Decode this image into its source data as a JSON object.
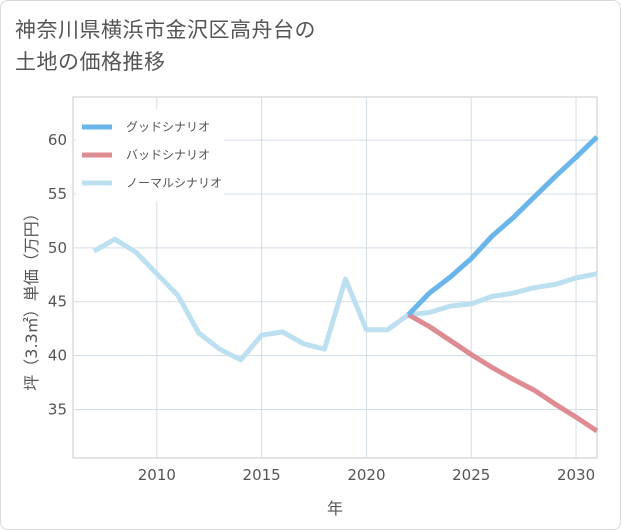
{
  "title_line1": "神奈川県横浜市金沢区高舟台の",
  "title_line2": "土地の価格推移",
  "chart_data": {
    "type": "line",
    "title": "神奈川県横浜市金沢区高舟台の土地の価格推移",
    "xlabel": "年",
    "ylabel": "坪（3.3㎡）単価（万円）",
    "xlim": [
      2006,
      2031
    ],
    "ylim": [
      30.5,
      64
    ],
    "xticks": [
      2010,
      2015,
      2020,
      2025,
      2030
    ],
    "yticks": [
      35,
      40,
      45,
      50,
      55,
      60
    ],
    "grid": true,
    "legend_position": "top-left",
    "series": [
      {
        "name": "グッドシナリオ",
        "color": "#6ab6ea",
        "x": [
          2022,
          2023,
          2024,
          2025,
          2026,
          2027,
          2028,
          2029,
          2030,
          2031
        ],
        "y": [
          43.8,
          45.8,
          47.3,
          49.0,
          51.1,
          52.8,
          54.7,
          56.6,
          58.4,
          60.3
        ]
      },
      {
        "name": "バッドシナリオ",
        "color": "#df8b92",
        "x": [
          2022,
          2023,
          2024,
          2025,
          2026,
          2027,
          2028,
          2029,
          2030,
          2031
        ],
        "y": [
          43.8,
          42.7,
          41.4,
          40.1,
          38.9,
          37.8,
          36.8,
          35.5,
          34.3,
          33.0
        ]
      },
      {
        "name": "ノーマルシナリオ",
        "color": "#bde0f0",
        "x": [
          2007,
          2008,
          2009,
          2010,
          2011,
          2012,
          2013,
          2014,
          2015,
          2016,
          2017,
          2018,
          2019,
          2020,
          2021,
          2022,
          2023,
          2024,
          2025,
          2026,
          2027,
          2028,
          2029,
          2030,
          2031
        ],
        "y": [
          49.7,
          50.8,
          49.6,
          47.6,
          45.6,
          42.1,
          40.6,
          39.6,
          41.9,
          42.2,
          41.1,
          40.6,
          47.1,
          42.4,
          42.4,
          43.8,
          44.0,
          44.6,
          44.8,
          45.5,
          45.8,
          46.3,
          46.6,
          47.2,
          47.6
        ]
      }
    ]
  }
}
